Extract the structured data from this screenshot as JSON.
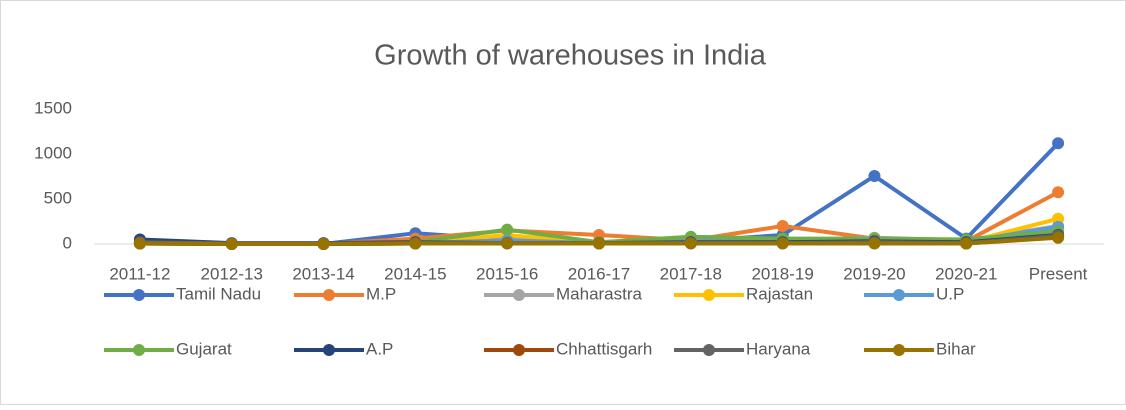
{
  "chart_data": {
    "type": "line",
    "title": "Growth of warehouses in India",
    "categories": [
      "2011-12",
      "2012-13",
      "2013-14",
      "2014-15",
      "2015-16",
      "2016-17",
      "2017-18",
      "2018-19",
      "2019-20",
      "2020-21",
      "Present"
    ],
    "series": [
      {
        "name": "Tamil Nadu",
        "color": "#4472c4",
        "values": [
          10,
          0,
          0,
          120,
          50,
          20,
          30,
          100,
          756,
          60,
          1120
        ]
      },
      {
        "name": "M.P",
        "color": "#ed7d31",
        "values": [
          10,
          0,
          0,
          60,
          150,
          100,
          40,
          200,
          60,
          30,
          575
        ]
      },
      {
        "name": "Maharastra",
        "color": "#a5a5a5",
        "values": [
          5,
          0,
          0,
          20,
          60,
          20,
          30,
          40,
          70,
          40,
          200
        ]
      },
      {
        "name": "Rajastan",
        "color": "#ffc000",
        "values": [
          5,
          0,
          0,
          10,
          100,
          10,
          20,
          30,
          40,
          20,
          280
        ]
      },
      {
        "name": "U.P",
        "color": "#5b9bd5",
        "values": [
          5,
          0,
          0,
          10,
          40,
          10,
          30,
          40,
          40,
          30,
          190
        ]
      },
      {
        "name": "Gujarat",
        "color": "#70ad47",
        "values": [
          10,
          0,
          0,
          20,
          160,
          20,
          80,
          60,
          60,
          50,
          140
        ]
      },
      {
        "name": "A.P",
        "color": "#264478",
        "values": [
          50,
          10,
          10,
          20,
          10,
          10,
          20,
          20,
          30,
          20,
          100
        ]
      },
      {
        "name": "Chhattisgarh",
        "color": "#9e480e",
        "values": [
          5,
          0,
          0,
          5,
          10,
          5,
          10,
          10,
          10,
          5,
          80
        ]
      },
      {
        "name": "Haryana",
        "color": "#636363",
        "values": [
          20,
          5,
          5,
          10,
          10,
          10,
          10,
          10,
          20,
          10,
          90
        ]
      },
      {
        "name": "Bihar",
        "color": "#997300",
        "values": [
          5,
          0,
          0,
          5,
          5,
          5,
          5,
          5,
          5,
          5,
          70
        ]
      }
    ],
    "ylim": [
      0,
      1500
    ],
    "yticks": [
      0,
      500,
      1000,
      1500
    ],
    "grid": false,
    "legend": "bottom"
  }
}
